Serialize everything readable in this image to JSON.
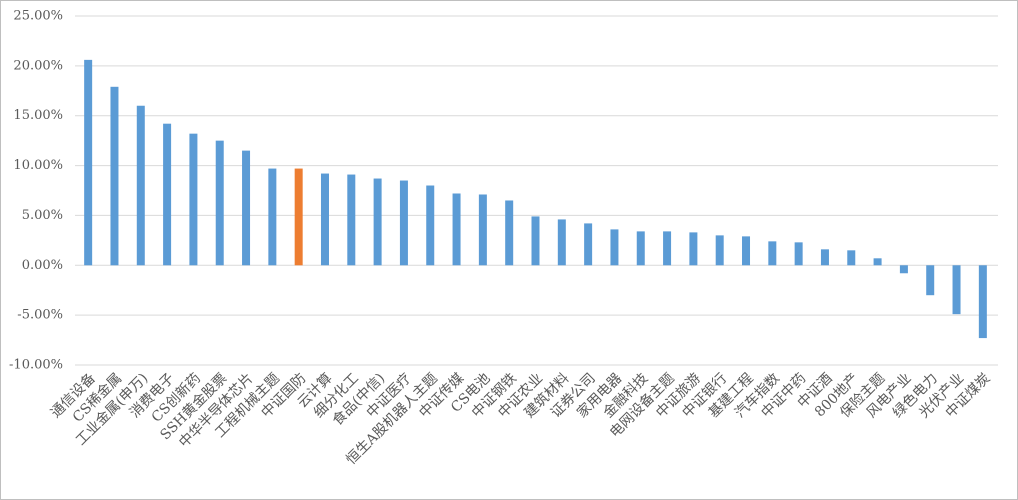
{
  "chart_data": {
    "type": "bar",
    "categories": [
      "通信设备",
      "CS稀金属",
      "工业金属(申万)",
      "消费电子",
      "CS创新药",
      "SSH黄金股票",
      "中华半导体芯片",
      "工程机械主题",
      "中证国防",
      "云计算",
      "细分化工",
      "食品(中信)",
      "中证医疗",
      "恒生A股机器人主题",
      "中证传媒",
      "CS电池",
      "中证钢铁",
      "中证农业",
      "建筑材料",
      "证券公司",
      "家用电器",
      "金融科技",
      "电网设备主题",
      "中证旅游",
      "中证银行",
      "基建工程",
      "汽车指数",
      "中证中药",
      "中证酒",
      "800地产",
      "保险主题",
      "风电产业",
      "绿色电力",
      "光伏产业",
      "中证煤炭"
    ],
    "values": [
      20.6,
      17.9,
      16.0,
      14.2,
      13.2,
      12.5,
      11.5,
      9.7,
      9.7,
      9.2,
      9.1,
      8.7,
      8.5,
      8.0,
      7.2,
      7.1,
      6.5,
      4.9,
      4.6,
      4.2,
      3.6,
      3.4,
      3.4,
      3.3,
      3.0,
      2.9,
      2.4,
      2.3,
      1.6,
      1.5,
      0.7,
      -0.8,
      -3.0,
      -4.9,
      -7.3
    ],
    "colors": [
      "#5b9bd5",
      "#5b9bd5",
      "#5b9bd5",
      "#5b9bd5",
      "#5b9bd5",
      "#5b9bd5",
      "#5b9bd5",
      "#5b9bd5",
      "#ed7d31",
      "#5b9bd5",
      "#5b9bd5",
      "#5b9bd5",
      "#5b9bd5",
      "#5b9bd5",
      "#5b9bd5",
      "#5b9bd5",
      "#5b9bd5",
      "#5b9bd5",
      "#5b9bd5",
      "#5b9bd5",
      "#5b9bd5",
      "#5b9bd5",
      "#5b9bd5",
      "#5b9bd5",
      "#5b9bd5",
      "#5b9bd5",
      "#5b9bd5",
      "#5b9bd5",
      "#5b9bd5",
      "#5b9bd5",
      "#5b9bd5",
      "#5b9bd5",
      "#5b9bd5",
      "#5b9bd5",
      "#5b9bd5"
    ],
    "ylim": [
      -10,
      25
    ],
    "yticks": [
      {
        "value": -10,
        "label": "-10.00%"
      },
      {
        "value": -5,
        "label": "-5.00%"
      },
      {
        "value": 0,
        "label": "0.00%"
      },
      {
        "value": 5,
        "label": "5.00%"
      },
      {
        "value": 10,
        "label": "10.00%"
      },
      {
        "value": 15,
        "label": "15.00%"
      },
      {
        "value": 20,
        "label": "20.00%"
      },
      {
        "value": 25,
        "label": "25.00%"
      }
    ],
    "grid": true
  }
}
